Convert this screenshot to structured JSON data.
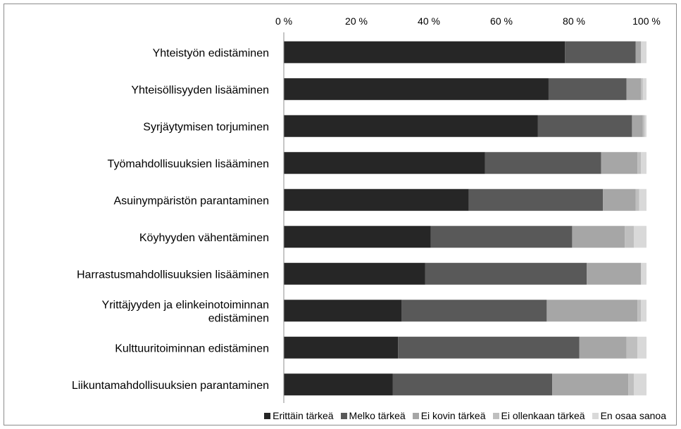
{
  "chart_data": {
    "type": "bar",
    "orientation": "horizontal",
    "stacked": true,
    "percent_axis": true,
    "xlim": [
      0,
      100
    ],
    "x_ticks": [
      "0 %",
      "20 %",
      "40 %",
      "60 %",
      "80 %",
      "100 %"
    ],
    "x_tick_values": [
      0,
      20,
      40,
      60,
      80,
      100
    ],
    "x_axis_position": "top",
    "grid": false,
    "legend_position": "bottom",
    "categories": [
      "Yhteistyön edistäminen",
      "Yhteisöllisyyden lisääminen",
      "Syrjäytymisen torjuminen",
      "Työmahdollisuuksien lisääminen",
      "Asuinympäristön parantaminen",
      "Köyhyyden vähentäminen",
      "Harrastusmahdollisuuksien lisääminen",
      "Yrittäjyyden ja elinkeinotoiminnan edistäminen",
      "Kulttuuritoiminnan edistäminen",
      "Liikuntamahdollisuuksien parantaminen"
    ],
    "category_lines": [
      [
        "Yhteistyön edistäminen"
      ],
      [
        "Yhteisöllisyyden lisääminen"
      ],
      [
        "Syrjäytymisen torjuminen"
      ],
      [
        "Työmahdollisuuksien lisääminen"
      ],
      [
        "Asuinympäristön parantaminen"
      ],
      [
        "Köyhyyden vähentäminen"
      ],
      [
        "Harrastusmahdollisuuksien lisääminen"
      ],
      [
        "Yrittäjyyden ja elinkeinotoiminnan",
        "edistäminen"
      ],
      [
        "Kulttuuritoiminnan edistäminen"
      ],
      [
        "Liikuntamahdollisuuksien parantaminen"
      ]
    ],
    "series": [
      {
        "name": "Erittäin tärkeä",
        "color": "#262626",
        "values": [
          77.5,
          73,
          70,
          55.5,
          51,
          40.5,
          39,
          32.5,
          31.5,
          30
        ]
      },
      {
        "name": "Melko tärkeä",
        "color": "#595959",
        "values": [
          19.5,
          21.5,
          26,
          32,
          37,
          39,
          44.5,
          40,
          50,
          44
        ]
      },
      {
        "name": "Ei kovin tärkeä",
        "color": "#a6a6a6",
        "values": [
          1.5,
          4,
          3,
          10,
          9,
          14.5,
          15,
          25,
          13,
          21
        ]
      },
      {
        "name": "Ei ollenkaan tärkeä",
        "color": "#bfbfbf",
        "values": [
          0,
          0.5,
          0.5,
          1,
          1,
          2.5,
          0,
          1,
          3,
          1.5
        ]
      },
      {
        "name": "En osaa sanoa",
        "color": "#d9d9d9",
        "values": [
          1.5,
          1,
          0.5,
          1.5,
          2,
          3.5,
          1.5,
          1.5,
          2.5,
          3.5
        ]
      }
    ]
  }
}
